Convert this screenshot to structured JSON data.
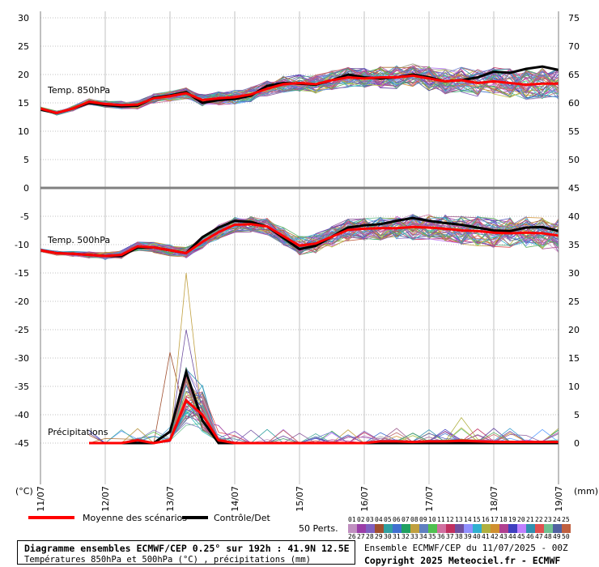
{
  "chart_data": {
    "type": "line",
    "left_axis_ticks": [
      "30",
      "25",
      "20",
      "15",
      "10",
      "5",
      "0",
      "-5",
      "-10",
      "-15",
      "-20",
      "-25",
      "-30",
      "-35",
      "-40",
      "-45"
    ],
    "right_axis_ticks": [
      "75",
      "70",
      "65",
      "60",
      "55",
      "50",
      "45",
      "40",
      "35",
      "30",
      "25",
      "20",
      "15",
      "10",
      "5",
      "0"
    ],
    "left_unit": "(°C)",
    "right_unit": "(mm)",
    "x_ticks": [
      "11/07",
      "12/07",
      "13/07",
      "14/07",
      "15/07",
      "16/07",
      "17/07",
      "18/07",
      "19/07"
    ],
    "x_hours": [
      0,
      6,
      12,
      18,
      24,
      30,
      36,
      42,
      48,
      54,
      60,
      66,
      72,
      78,
      84,
      90,
      96,
      102,
      108,
      114,
      120,
      126,
      132,
      138,
      144,
      150,
      156,
      162,
      168,
      174,
      180,
      186,
      192
    ],
    "panels": {
      "t850_label": "Temp. 850hPa",
      "t500_label": "Temp. 500hPa",
      "precip_label": "Précipitations"
    },
    "series": [
      {
        "name": "Moyenne des scénarios",
        "color": "#ff0000",
        "t850": [
          14,
          13.2,
          14,
          15.2,
          14.8,
          14.6,
          14.7,
          15.8,
          16.2,
          16.7,
          15.5,
          15.8,
          16,
          16.5,
          17.5,
          18.3,
          18.5,
          18.3,
          19,
          19.5,
          19.3,
          19.5,
          19.5,
          19.8,
          19.3,
          18.8,
          19,
          18.5,
          18.8,
          18.5,
          18.2,
          18.4,
          18.4
        ],
        "t500": [
          -11,
          -11.5,
          -11.6,
          -11.8,
          -12,
          -11.8,
          -10.3,
          -10.5,
          -11,
          -11.5,
          -9.5,
          -7.8,
          -6.5,
          -6.4,
          -6.8,
          -8.5,
          -10.2,
          -9.8,
          -8.6,
          -7.4,
          -7.2,
          -7.1,
          -7.1,
          -6.9,
          -7,
          -7.2,
          -7.5,
          -7.6,
          -7.9,
          -8,
          -7.9,
          -8,
          -8.4
        ],
        "precip": [
          0,
          0,
          0,
          0,
          0,
          0,
          0.5,
          0,
          0.5,
          7.5,
          5,
          0.5,
          0,
          0,
          0,
          0,
          0,
          0,
          0,
          0,
          0,
          0.3,
          0.3,
          0.2,
          0.3,
          0.3,
          0.4,
          0.3,
          0.2,
          0.2,
          0.2,
          0.2,
          0.2
        ]
      },
      {
        "name": "Contrôle/Det",
        "color": "#000000",
        "t850": [
          13.8,
          13.2,
          14,
          15,
          14.6,
          14.4,
          14.5,
          15.9,
          16.3,
          16.9,
          15,
          15.5,
          15.7,
          16.3,
          18,
          18.5,
          18.4,
          18.2,
          19,
          20,
          19.5,
          19.3,
          19.5,
          20,
          19.5,
          18.8,
          19,
          19.5,
          20.5,
          20.3,
          21,
          21.4,
          20.8
        ],
        "t500": [
          -11,
          -11.5,
          -11.6,
          -11.8,
          -12,
          -12,
          -10.5,
          -10.5,
          -11,
          -11.5,
          -8.7,
          -7,
          -5.8,
          -6,
          -6.8,
          -8.8,
          -10.8,
          -10.2,
          -8.6,
          -7,
          -6.6,
          -6.4,
          -5.8,
          -5.3,
          -5.8,
          -6.2,
          -6.5,
          -7,
          -7.5,
          -7.6,
          -7,
          -6.9,
          -7.6
        ],
        "precip": [
          0,
          0,
          0,
          0,
          0,
          0,
          0,
          0,
          2,
          12.5,
          4,
          0,
          0,
          0,
          0,
          0,
          0,
          0,
          0,
          0,
          0,
          0,
          0,
          0,
          0,
          0,
          0,
          0,
          0,
          0,
          0,
          0,
          0
        ]
      }
    ],
    "legend": {
      "mean_label": "Moyenne des scénarios",
      "control_label": "Contrôle/Det",
      "perts_label": "50 Perts.",
      "row1": [
        "01",
        "02",
        "03",
        "04",
        "05",
        "06",
        "07",
        "08",
        "09",
        "10",
        "11",
        "12",
        "13",
        "14",
        "15",
        "16",
        "17",
        "18",
        "19",
        "20",
        "21",
        "22",
        "23",
        "24",
        "25"
      ],
      "row2": [
        "26",
        "27",
        "28",
        "29",
        "30",
        "31",
        "32",
        "33",
        "34",
        "35",
        "36",
        "37",
        "38",
        "39",
        "40",
        "41",
        "42",
        "43",
        "44",
        "45",
        "46",
        "47",
        "48",
        "49",
        "50"
      ]
    },
    "colors": {
      "mean": "#ff0000",
      "control": "#000000",
      "panel_divider": "#808080",
      "grid": "#c0c0c0"
    }
  },
  "footer": {
    "title": "Diagramme ensembles ECMWF/CEP 0.25° sur 192h : 41.9N 12.5E",
    "subtitle": "Températures 850hPa et 500hPa (°C) , précipitations (mm)",
    "run_info": "Ensemble ECMWF/CEP du 11/07/2025 - 00Z",
    "copyright": "Copyright 2025 Meteociel.fr - ECMWF"
  }
}
